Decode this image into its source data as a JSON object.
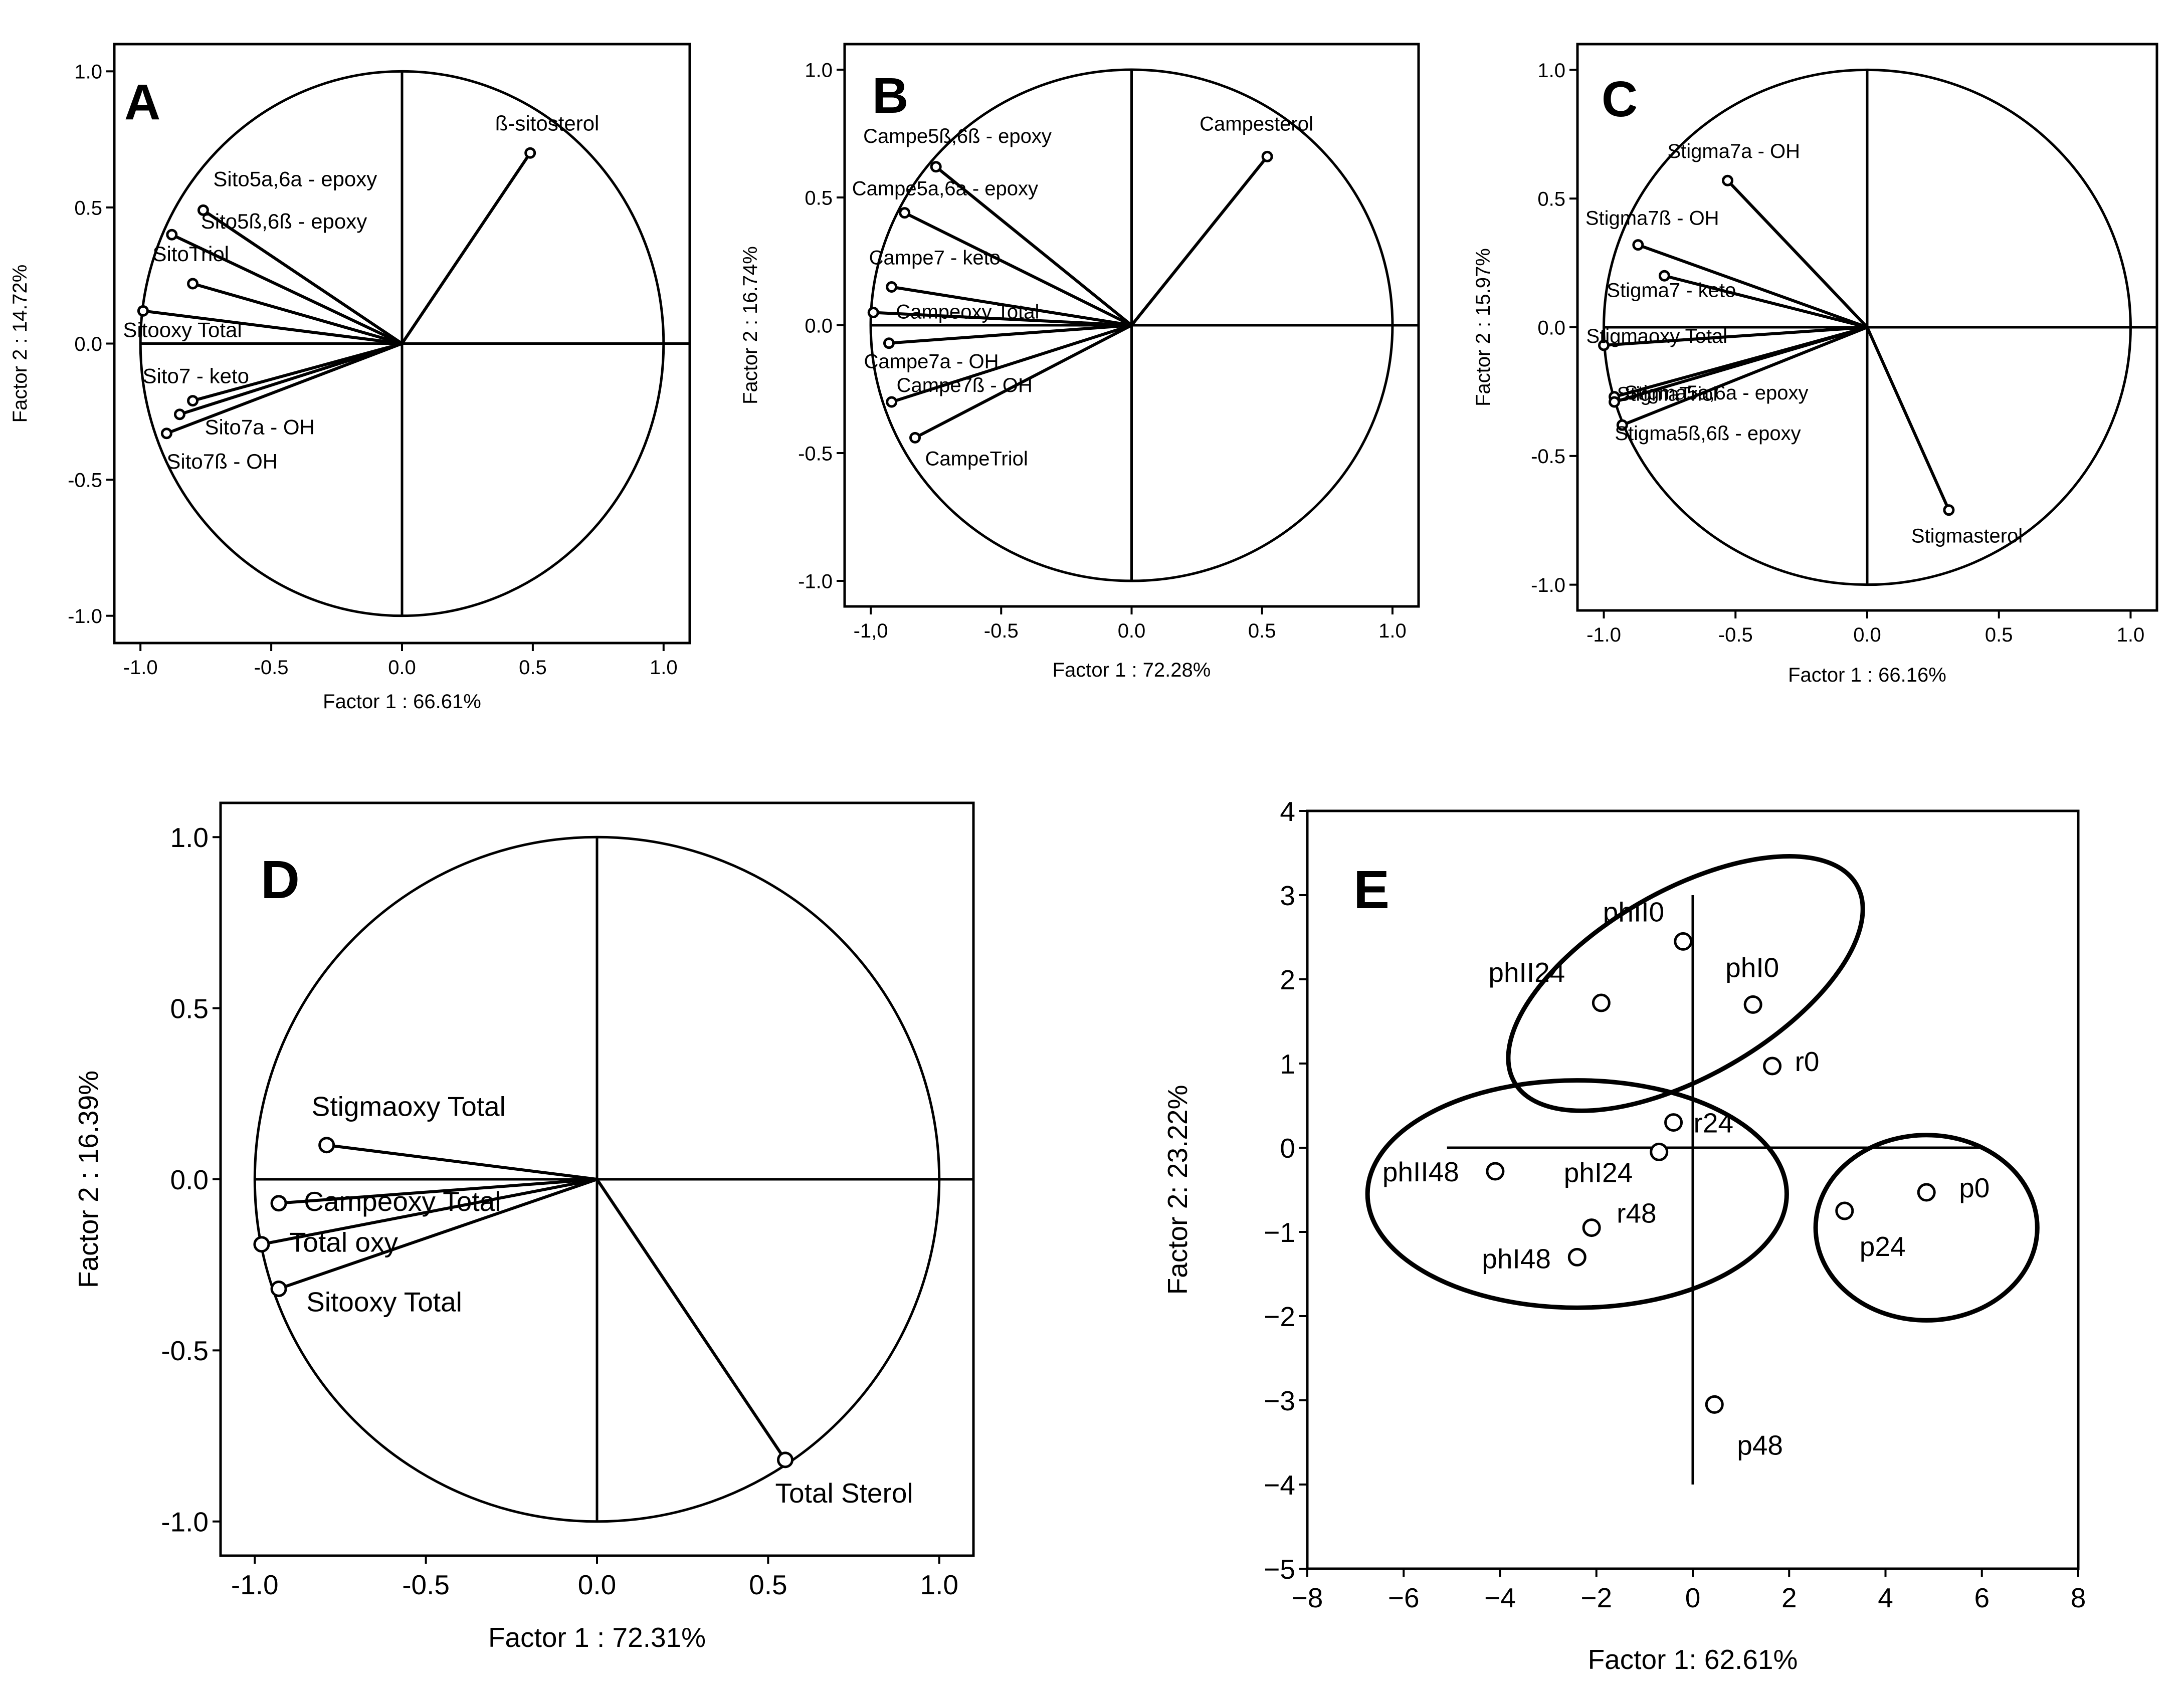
{
  "chart_data": [
    {
      "panel": "A",
      "type": "scatter",
      "xlabel": "Factor 1 : 66.61%",
      "ylabel": "Factor 2 : 14.72%",
      "xlim": [
        -1.1,
        1.1
      ],
      "ylim": [
        -1.1,
        1.1
      ],
      "xticks": [
        -1.0,
        -0.5,
        0.0,
        0.5,
        1.0
      ],
      "xtick_labels": [
        "-1.0",
        "-0.5",
        "0.0",
        "0.5",
        "1.0"
      ],
      "yticks": [
        -1.0,
        -0.5,
        0.0,
        0.5,
        1.0
      ],
      "ytick_labels": [
        "-1.0",
        "-0.5",
        "0.0",
        "0.5",
        "1.0"
      ],
      "unit_circle": true,
      "points": [
        {
          "label": "ß-sitosterol",
          "x": 0.49,
          "y": 0.7
        },
        {
          "label": "Sito5a,6a - epoxy",
          "x": -0.76,
          "y": 0.49
        },
        {
          "label": "Sito5ß,6ß - epoxy",
          "x": -0.88,
          "y": 0.4
        },
        {
          "label": "SitoTriol",
          "x": -0.8,
          "y": 0.22
        },
        {
          "label": "Sitooxy  Total",
          "x": -0.99,
          "y": 0.12
        },
        {
          "label": "Sito7 - keto",
          "x": -0.8,
          "y": -0.21
        },
        {
          "label": "Sito7a - OH",
          "x": -0.85,
          "y": -0.26
        },
        {
          "label": "Sito7ß - OH",
          "x": -0.9,
          "y": -0.33
        }
      ]
    },
    {
      "panel": "B",
      "type": "scatter",
      "xlabel": "Factor 1 : 72.28%",
      "ylabel": "Factor 2 : 16.74%",
      "xlim": [
        -1.1,
        1.1
      ],
      "ylim": [
        -1.1,
        1.1
      ],
      "xticks": [
        -1.0,
        -0.5,
        0.0,
        0.5,
        1.0
      ],
      "xtick_labels": [
        "-1,0",
        "-0.5",
        "0.0",
        "0.5",
        "1.0"
      ],
      "yticks": [
        -1.0,
        -0.5,
        0.0,
        0.5,
        1.0
      ],
      "ytick_labels": [
        "-1.0",
        "-0.5",
        "0.0",
        "0.5",
        "1.0"
      ],
      "unit_circle": true,
      "points": [
        {
          "label": "Campesterol",
          "x": 0.52,
          "y": 0.66
        },
        {
          "label": "Campe5ß,6ß - epoxy",
          "x": -0.75,
          "y": 0.62
        },
        {
          "label": "Campe5a,6a - epoxy",
          "x": -0.87,
          "y": 0.44
        },
        {
          "label": "Campe7 - keto",
          "x": -0.92,
          "y": 0.15
        },
        {
          "label": "Campeoxy  Total",
          "x": -0.99,
          "y": 0.05
        },
        {
          "label": "Campe7a - OH",
          "x": -0.93,
          "y": -0.07
        },
        {
          "label": "Campe7ß - OH",
          "x": -0.92,
          "y": -0.3
        },
        {
          "label": "CampeTriol",
          "x": -0.83,
          "y": -0.44
        }
      ]
    },
    {
      "panel": "C",
      "type": "scatter",
      "xlabel": "Factor 1 : 66.16%",
      "ylabel": "Factor 2 : 15.97%",
      "xlim": [
        -1.1,
        1.1
      ],
      "ylim": [
        -1.1,
        1.1
      ],
      "xticks": [
        -1.0,
        -0.5,
        0.0,
        0.5,
        1.0
      ],
      "xtick_labels": [
        "-1.0",
        "-0.5",
        "0.0",
        "0.5",
        "1.0"
      ],
      "yticks": [
        -1.0,
        -0.5,
        0.0,
        0.5,
        1.0
      ],
      "ytick_labels": [
        "-1.0",
        "-0.5",
        "0.0",
        "0.5",
        "1.0"
      ],
      "unit_circle": true,
      "points": [
        {
          "label": "Stigma7a - OH",
          "x": -0.53,
          "y": 0.57
        },
        {
          "label": "Stigma7ß - OH",
          "x": -0.87,
          "y": 0.32
        },
        {
          "label": "Stigma7 - keto",
          "x": -0.77,
          "y": 0.2
        },
        {
          "label": "Stigmaoxy  Total",
          "x": -1.0,
          "y": -0.07
        },
        {
          "label": "StigmaTriol",
          "x": -0.96,
          "y": -0.27
        },
        {
          "label": "Stigma5a,6a - epoxy",
          "x": -0.96,
          "y": -0.29
        },
        {
          "label": "Stigma5ß,6ß - epoxy",
          "x": -0.93,
          "y": -0.38
        },
        {
          "label": "Stigmasterol",
          "x": 0.31,
          "y": -0.71
        }
      ]
    },
    {
      "panel": "D",
      "type": "scatter",
      "xlabel": "Factor 1 : 72.31%",
      "ylabel": "Factor 2 : 16.39%",
      "xlim": [
        -1.1,
        1.1
      ],
      "ylim": [
        -1.1,
        1.1
      ],
      "xticks": [
        -1.0,
        -0.5,
        0.0,
        0.5,
        1.0
      ],
      "xtick_labels": [
        "-1.0",
        "-0.5",
        "0.0",
        "0.5",
        "1.0"
      ],
      "yticks": [
        -1.0,
        -0.5,
        0.0,
        0.5,
        1.0
      ],
      "ytick_labels": [
        "-1.0",
        "-0.5",
        "0.0",
        "0.5",
        "1.0"
      ],
      "unit_circle": true,
      "points": [
        {
          "label": "Stigmaoxy Total",
          "x": -0.79,
          "y": 0.1
        },
        {
          "label": "Campeoxy Total",
          "x": -0.93,
          "y": -0.07
        },
        {
          "label": "Total oxy",
          "x": -0.98,
          "y": -0.19
        },
        {
          "label": "Sitooxy Total",
          "x": -0.93,
          "y": -0.32
        },
        {
          "label": "Total Sterol",
          "x": 0.55,
          "y": -0.82
        }
      ]
    },
    {
      "panel": "E",
      "type": "scatter",
      "xlabel": "Factor 1: 62.61%",
      "ylabel": "Factor 2: 23.22%",
      "xlim": [
        -8,
        8
      ],
      "ylim": [
        -5,
        4
      ],
      "xticks": [
        -8,
        -6,
        -4,
        -2,
        0,
        2,
        4,
        6,
        8
      ],
      "xtick_labels": [
        "−8",
        "−6",
        "−4",
        "−2",
        "0",
        "2",
        "4",
        "6",
        "8"
      ],
      "yticks": [
        -5,
        -4,
        -3,
        -2,
        -1,
        0,
        1,
        2,
        3,
        4
      ],
      "ytick_labels": [
        "−5",
        "−4",
        "−3",
        "−2",
        "−1",
        "0",
        "1",
        "2",
        "3",
        "4"
      ],
      "axis_lines": {
        "h": {
          "y": 0,
          "x1": -5.1,
          "x2": 6.0
        },
        "v": {
          "x": 0,
          "y1": -4.0,
          "y2": 3.0
        }
      },
      "points": [
        {
          "label": "phII0",
          "x": -0.2,
          "y": 2.45
        },
        {
          "label": "phII24",
          "x": -1.9,
          "y": 1.72
        },
        {
          "label": "phI0",
          "x": 1.25,
          "y": 1.7
        },
        {
          "label": "r0",
          "x": 1.65,
          "y": 0.97
        },
        {
          "label": "r24",
          "x": -0.4,
          "y": 0.3
        },
        {
          "label": "phI24",
          "x": -0.7,
          "y": -0.05
        },
        {
          "label": "phII48",
          "x": -4.1,
          "y": -0.28
        },
        {
          "label": "r48",
          "x": -2.1,
          "y": -0.95
        },
        {
          "label": "phI48",
          "x": -2.4,
          "y": -1.3
        },
        {
          "label": "p0",
          "x": 4.85,
          "y": -0.53
        },
        {
          "label": "p24",
          "x": 3.15,
          "y": -0.75
        },
        {
          "label": "p48",
          "x": 0.45,
          "y": -3.05
        }
      ],
      "groups": [
        {
          "cx": -0.15,
          "cy": 1.95,
          "rx": 4.1,
          "ry": 1.1,
          "angle": -30
        },
        {
          "cx": -2.4,
          "cy": -0.55,
          "rx": 4.35,
          "ry": 1.35,
          "angle": 0
        },
        {
          "cx": 4.85,
          "cy": -0.95,
          "rx": 2.3,
          "ry": 1.1,
          "angle": 0
        }
      ]
    }
  ]
}
